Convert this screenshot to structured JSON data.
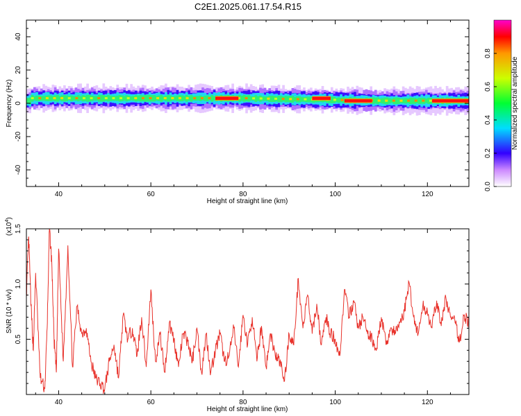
{
  "figure": {
    "title": "C2E1.2025.061.17.54.R15"
  },
  "chart_data": [
    {
      "type": "heatmap",
      "title": "C2E1.2025.061.17.54.R15",
      "xlabel": "Height of straight line (km)",
      "ylabel": "Frequency (Hz)",
      "xlim": [
        33,
        129
      ],
      "ylim": [
        -50,
        50
      ],
      "x_ticks": [
        "40",
        "60",
        "80",
        "100",
        "120"
      ],
      "y_ticks": [
        "40",
        "20",
        "0",
        "-20",
        "-40"
      ],
      "colorbar": {
        "label": "Normalized spectral amplitude",
        "range": [
          0,
          1
        ],
        "ticks": [
          "0.0",
          "0.2",
          "0.4",
          "0.6",
          "0.8"
        ]
      },
      "band": {
        "description_values": "frequency band of energy concentrated near 0-5 Hz",
        "center_hz": [
          {
            "x": 34,
            "f": 3
          },
          {
            "x": 40,
            "f": 3
          },
          {
            "x": 50,
            "f": 3
          },
          {
            "x": 60,
            "f": 3
          },
          {
            "x": 70,
            "f": 3
          },
          {
            "x": 80,
            "f": 3
          },
          {
            "x": 90,
            "f": 2.5
          },
          {
            "x": 100,
            "f": 2
          },
          {
            "x": 110,
            "f": 1.5
          },
          {
            "x": 120,
            "f": 1.5
          },
          {
            "x": 129,
            "f": 1.5
          }
        ],
        "half_width_hz": 3,
        "high_amplitude_segments": [
          {
            "x0": 74,
            "x1": 79,
            "f": 3
          },
          {
            "x0": 95,
            "x1": 99,
            "f": 3
          },
          {
            "x0": 102,
            "x1": 108,
            "f": 1.5
          },
          {
            "x0": 121,
            "x1": 129,
            "f": 1.5
          }
        ]
      }
    },
    {
      "type": "line",
      "xlabel": "Height of straight line (km)",
      "ylabel": "SNR (10 * v/v)",
      "y_multiplier": "(x10",
      "y_multiplier_exp": "4",
      "y_multiplier_close": ")",
      "xlim": [
        33,
        129
      ],
      "ylim": [
        0,
        1.5
      ],
      "x_ticks": [
        "40",
        "60",
        "80",
        "100",
        "120"
      ],
      "y_ticks": [
        "1.5",
        "1.0",
        "0.5"
      ],
      "color": "#e8312a",
      "series": [
        {
          "x": [
            33,
            33.5,
            34,
            34.5,
            35,
            36,
            37,
            37.5,
            38,
            38.5,
            39,
            39.5,
            40,
            41,
            42,
            43,
            44,
            45,
            46,
            47,
            48,
            49,
            50,
            51,
            52,
            53,
            54,
            55,
            56,
            57,
            58,
            59,
            60,
            61,
            62,
            63,
            64,
            65,
            66,
            67,
            68,
            69,
            70,
            71,
            72,
            73,
            74,
            75,
            76,
            77,
            78,
            79,
            80,
            81,
            82,
            83,
            84,
            85,
            86,
            87,
            88,
            89,
            90,
            91,
            92,
            93,
            94,
            95,
            96,
            97,
            98,
            99,
            100,
            101,
            102,
            103,
            104,
            105,
            106,
            107,
            108,
            109,
            110,
            111,
            112,
            113,
            114,
            115,
            116,
            117,
            118,
            119,
            120,
            121,
            122,
            123,
            124,
            125,
            126,
            127,
            128,
            129
          ],
          "values": [
            0.9,
            1.43,
            0.8,
            0.4,
            1.1,
            0.15,
            0.05,
            0.6,
            1.5,
            1.2,
            0.5,
            0.2,
            1.32,
            0.3,
            1.35,
            0.25,
            0.8,
            0.55,
            0.6,
            0.3,
            0.15,
            0.1,
            0.05,
            0.3,
            0.45,
            0.15,
            0.72,
            0.5,
            0.6,
            0.35,
            0.7,
            0.25,
            0.95,
            0.3,
            0.55,
            0.2,
            0.65,
            0.5,
            0.25,
            0.55,
            0.48,
            0.3,
            0.6,
            0.2,
            0.55,
            0.2,
            0.4,
            0.55,
            0.3,
            0.35,
            0.6,
            0.25,
            0.72,
            0.45,
            0.7,
            0.3,
            0.62,
            0.25,
            0.55,
            0.35,
            0.3,
            0.12,
            0.55,
            0.45,
            1.05,
            0.6,
            0.9,
            0.55,
            0.82,
            0.45,
            0.7,
            0.55,
            0.5,
            0.35,
            0.95,
            0.7,
            0.85,
            0.6,
            0.7,
            0.55,
            0.5,
            0.42,
            0.7,
            0.45,
            0.6,
            0.55,
            0.65,
            0.75,
            1.02,
            0.7,
            0.55,
            0.8,
            0.75,
            0.6,
            0.85,
            0.62,
            0.88,
            0.7,
            0.65,
            0.48,
            0.72,
            0.65
          ]
        }
      ]
    }
  ]
}
